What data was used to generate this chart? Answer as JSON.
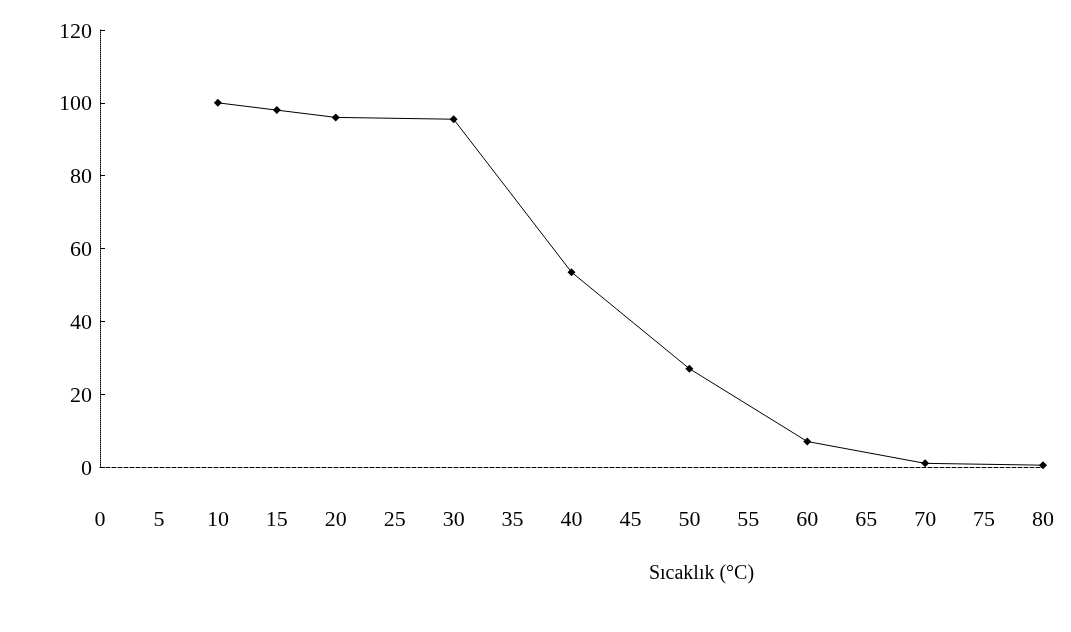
{
  "chart_data": {
    "type": "line",
    "xlabel": "Sıcaklık (°C)",
    "x": [
      10,
      15,
      20,
      30,
      40,
      50,
      60,
      70,
      80
    ],
    "series": [
      {
        "color": "#000000",
        "values": [
          100,
          98,
          96,
          95.5,
          53.5,
          27,
          7,
          1,
          0.5
        ]
      }
    ],
    "xlim": [
      0,
      80
    ],
    "xticks": [
      0,
      5,
      10,
      15,
      20,
      25,
      30,
      35,
      40,
      45,
      50,
      55,
      60,
      65,
      70,
      75,
      80
    ],
    "ylim": [
      0,
      120
    ],
    "yticks": [
      0,
      20,
      40,
      60,
      80,
      100,
      120
    ],
    "marker": "diamond",
    "line_style": "solid"
  }
}
